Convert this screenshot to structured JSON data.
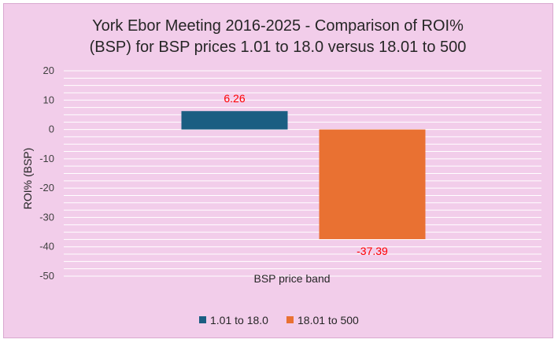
{
  "chart_data": {
    "type": "bar",
    "title_line1": "York Ebor Meeting 2016-2025 - Comparison of ROI%",
    "title_line2": "(BSP) for BSP prices 1.01 to 18.0 versus 18.01 to 500",
    "xlabel": "BSP price band",
    "ylabel": "ROI% (BSP)",
    "ylim": [
      -50,
      20
    ],
    "yticks": [
      "20",
      "10",
      "0",
      "-10",
      "-20",
      "-30",
      "-40",
      "-50"
    ],
    "grid": true,
    "legend_position": "bottom",
    "series": [
      {
        "name": "1.01 to 18.0",
        "value": 6.26,
        "label": "6.26",
        "color": "#1b5e82"
      },
      {
        "name": "18.01 to 500",
        "value": -37.39,
        "label": "-37.39",
        "color": "#e97132"
      }
    ]
  }
}
